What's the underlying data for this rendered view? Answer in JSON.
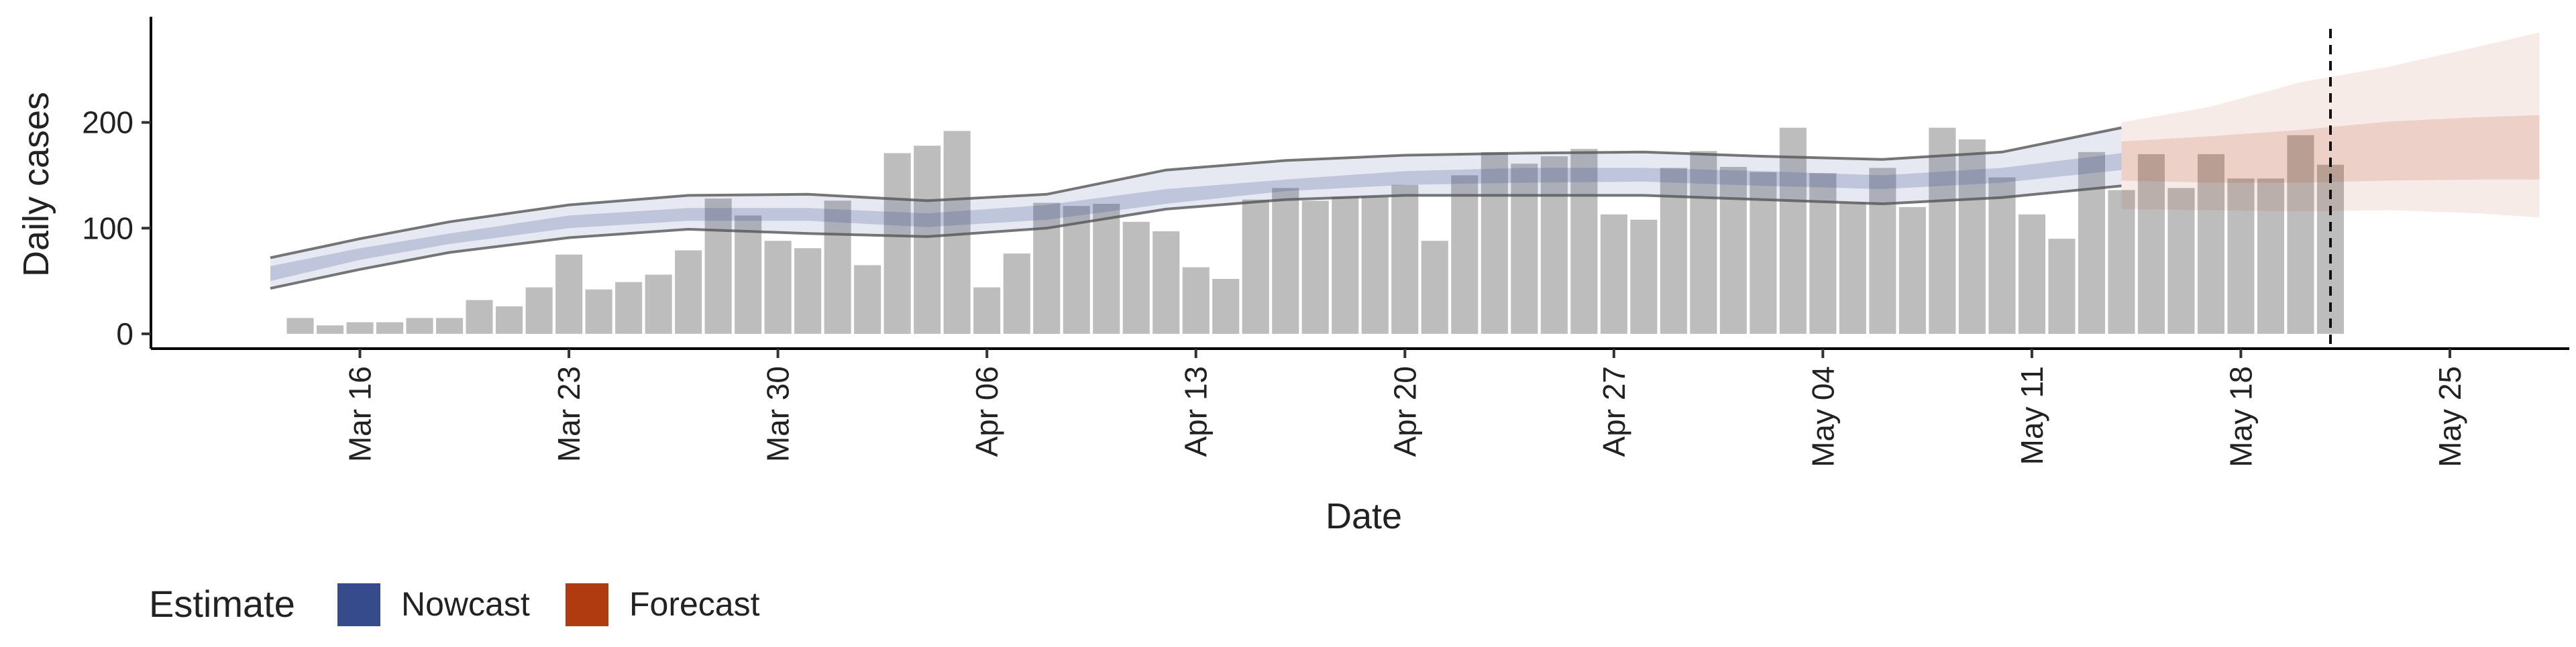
{
  "chart_data": {
    "type": "bar",
    "xlabel": "Date",
    "ylabel": "Daily cases",
    "x_axis": {
      "type": "date",
      "tick_dates": [
        "2020-03-16",
        "2020-03-23",
        "2020-03-30",
        "2020-04-06",
        "2020-04-13",
        "2020-04-20",
        "2020-04-27",
        "2020-05-04",
        "2020-05-11",
        "2020-05-18",
        "2020-05-25"
      ],
      "tick_labels": [
        "Mar 16",
        "Mar 23",
        "Mar 30",
        "Apr 06",
        "Apr 13",
        "Apr 20",
        "Apr 27",
        "May 04",
        "May 11",
        "May 18",
        "May 25"
      ],
      "range": [
        "2020-03-09",
        "2020-05-29"
      ]
    },
    "y_axis": {
      "ticks": [
        0,
        100,
        200
      ],
      "range": [
        -14,
        300
      ]
    },
    "grid": false,
    "bars": {
      "color": "#bdbdbd",
      "dates": [
        "2020-03-14",
        "2020-03-15",
        "2020-03-16",
        "2020-03-17",
        "2020-03-18",
        "2020-03-19",
        "2020-03-20",
        "2020-03-21",
        "2020-03-22",
        "2020-03-23",
        "2020-03-24",
        "2020-03-25",
        "2020-03-26",
        "2020-03-27",
        "2020-03-28",
        "2020-03-29",
        "2020-03-30",
        "2020-03-31",
        "2020-04-01",
        "2020-04-02",
        "2020-04-03",
        "2020-04-04",
        "2020-04-05",
        "2020-04-06",
        "2020-04-07",
        "2020-04-08",
        "2020-04-09",
        "2020-04-10",
        "2020-04-11",
        "2020-04-12",
        "2020-04-13",
        "2020-04-14",
        "2020-04-15",
        "2020-04-16",
        "2020-04-17",
        "2020-04-18",
        "2020-04-19",
        "2020-04-20",
        "2020-04-21",
        "2020-04-22",
        "2020-04-23",
        "2020-04-24",
        "2020-04-25",
        "2020-04-26",
        "2020-04-27",
        "2020-04-28",
        "2020-04-29",
        "2020-04-30",
        "2020-05-01",
        "2020-05-02",
        "2020-05-03",
        "2020-05-04",
        "2020-05-05",
        "2020-05-06",
        "2020-05-07",
        "2020-05-08",
        "2020-05-09",
        "2020-05-10",
        "2020-05-11",
        "2020-05-12",
        "2020-05-13",
        "2020-05-14",
        "2020-05-15",
        "2020-05-16",
        "2020-05-17",
        "2020-05-18",
        "2020-05-19",
        "2020-05-20",
        "2020-05-21"
      ],
      "values": [
        15,
        8,
        11,
        11,
        15,
        15,
        32,
        26,
        44,
        75,
        42,
        49,
        56,
        79,
        128,
        112,
        88,
        81,
        126,
        65,
        171,
        178,
        192,
        44,
        76,
        124,
        121,
        123,
        106,
        97,
        63,
        52,
        127,
        138,
        126,
        130,
        130,
        141,
        88,
        150,
        172,
        161,
        168,
        175,
        113,
        108,
        157,
        173,
        158,
        153,
        195,
        152,
        124,
        157,
        120,
        195,
        184,
        148,
        113,
        90,
        172,
        136,
        170,
        138,
        170,
        147,
        147,
        188,
        160
      ]
    },
    "series": [
      {
        "name": "Nowcast",
        "color": "#354b8b",
        "dates": [
          "2020-03-13",
          "2020-03-16",
          "2020-03-19",
          "2020-03-23",
          "2020-03-27",
          "2020-03-31",
          "2020-04-04",
          "2020-04-08",
          "2020-04-12",
          "2020-04-16",
          "2020-04-20",
          "2020-04-24",
          "2020-04-28",
          "2020-05-02",
          "2020-05-06",
          "2020-05-10",
          "2020-05-14"
        ],
        "median": [
          57,
          75,
          90,
          106,
          113,
          113,
          108,
          115,
          130,
          140,
          147,
          150,
          150,
          147,
          143,
          150,
          163
        ],
        "inner_low": [
          50,
          70,
          85,
          100,
          107,
          107,
          101,
          108,
          123,
          135,
          141,
          143,
          144,
          140,
          137,
          143,
          155
        ],
        "inner_high": [
          64,
          81,
          95,
          112,
          119,
          119,
          114,
          122,
          137,
          146,
          154,
          157,
          157,
          154,
          150,
          157,
          171
        ],
        "lower_90": [
          43,
          61,
          77,
          91,
          99,
          95,
          92,
          100,
          118,
          127,
          131,
          131,
          131,
          127,
          123,
          129,
          140
        ],
        "upper_90": [
          72,
          90,
          106,
          122,
          131,
          132,
          126,
          132,
          155,
          164,
          169,
          171,
          172,
          168,
          165,
          172,
          195
        ]
      },
      {
        "name": "Forecast",
        "color": "#b13b10",
        "dates": [
          "2020-05-14",
          "2020-05-17",
          "2020-05-20",
          "2020-05-23",
          "2020-05-26",
          "2020-05-28"
        ],
        "median": [
          163,
          163,
          165,
          172,
          176,
          177
        ],
        "inner_low": [
          145,
          143,
          143,
          145,
          146,
          146
        ],
        "inner_high": [
          182,
          187,
          193,
          201,
          205,
          207
        ],
        "lower_90": [
          118,
          117,
          116,
          117,
          114,
          110
        ],
        "upper_90": [
          200,
          215,
          238,
          253,
          272,
          285
        ]
      }
    ],
    "vline": {
      "date": "2020-05-21",
      "style": "dashed"
    },
    "legend": {
      "title": "Estimate",
      "position": "bottom-left",
      "entries": [
        {
          "label": "Nowcast",
          "color": "#354b8b"
        },
        {
          "label": "Forecast",
          "color": "#b13b10"
        }
      ]
    }
  }
}
